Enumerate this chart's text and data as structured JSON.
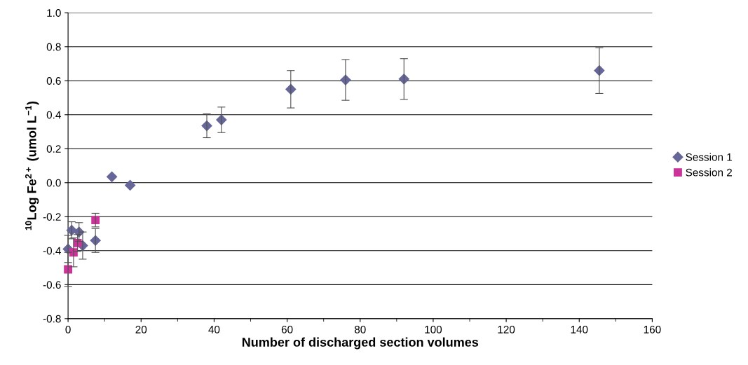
{
  "chart_data": {
    "type": "scatter",
    "xlabel": "Number of discharged section volumes",
    "ylabel": "$^{10}$Log Fe$^{2+}$ (umol L$^{−1}$)",
    "xlim": [
      0,
      160
    ],
    "xticks": [
      0,
      20,
      40,
      60,
      80,
      100,
      120,
      140,
      160
    ],
    "ylim": [
      -0.8,
      1.0
    ],
    "yticks": [
      {
        "value": -0.8,
        "label": "-0.8"
      },
      {
        "value": -0.6,
        "label": "-0.6"
      },
      {
        "value": -0.4,
        "label": "-0.4"
      },
      {
        "value": -0.2,
        "label": "-0.2"
      },
      {
        "value": 0,
        "label": "0.0"
      },
      {
        "value": 0.2,
        "label": "0.2"
      },
      {
        "value": 0.4,
        "label": "0.4"
      },
      {
        "value": 0.6,
        "label": "0.6"
      },
      {
        "value": 0.8,
        "label": "0.8"
      },
      {
        "value": 1.0,
        "label": "1.0"
      }
    ],
    "grid": "y",
    "legend": "right",
    "series": [
      {
        "name": "Session 1",
        "color": "#666699",
        "marker": "diamond",
        "x": [
          0,
          1,
          3,
          4,
          7.5,
          12,
          17,
          38,
          42,
          61,
          76,
          92,
          145.5
        ],
        "values": [
          -0.39,
          -0.28,
          -0.29,
          -0.37,
          -0.34,
          0.035,
          -0.015,
          0.335,
          0.37,
          0.55,
          0.605,
          0.61,
          0.66
        ],
        "errors": [
          0.08,
          0.05,
          0.055,
          0.08,
          0.07,
          null,
          null,
          0.07,
          0.075,
          0.11,
          0.12,
          0.12,
          0.135
        ]
      },
      {
        "name": "Session 2",
        "color": "#cc3399",
        "marker": "square",
        "x": [
          0,
          1.5,
          2.6,
          7.5
        ],
        "values": [
          -0.51,
          -0.41,
          -0.355,
          -0.22
        ],
        "errors": [
          0.1,
          0.085,
          0.05,
          0.04
        ]
      }
    ]
  }
}
